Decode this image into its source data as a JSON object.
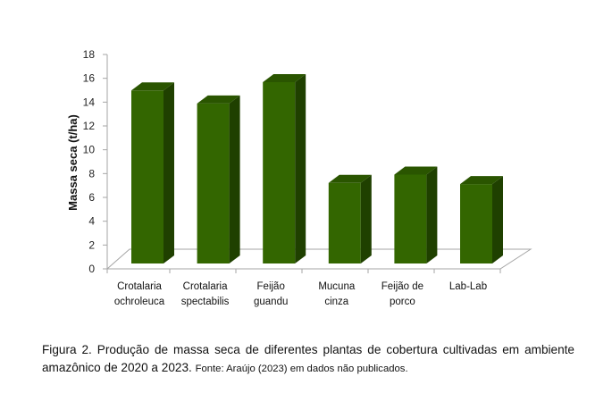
{
  "chart_data": {
    "type": "bar",
    "style": "3d",
    "categories": [
      [
        "Crotalaria",
        "ochroleuca"
      ],
      [
        "Crotalaria",
        "spectabilis"
      ],
      [
        "Feijão",
        "guandu"
      ],
      [
        "Mucuna",
        "cinza"
      ],
      [
        "Feijão de",
        "porco"
      ],
      [
        "Lab-Lab"
      ]
    ],
    "values": [
      14.6,
      13.5,
      15.3,
      6.8,
      7.5,
      6.7
    ],
    "ylabel": "Massa seca (t/ha)",
    "xlabel": "",
    "ylim": [
      0,
      18
    ],
    "yticks": [
      0,
      2,
      4,
      6,
      8,
      10,
      12,
      14,
      16,
      18
    ],
    "grid": false,
    "legend": "none",
    "colors": {
      "front": "#336600",
      "side": "#1f4000",
      "top": "#2a5500",
      "floor": "#a6a6a6"
    }
  },
  "caption": {
    "text": "Figura 2. Produção de massa seca de diferentes plantas de cobertura cultivadas em ambiente amazônico de 2020 a 2023.",
    "source": "Fonte: Araújo (2023) em dados não publicados."
  }
}
